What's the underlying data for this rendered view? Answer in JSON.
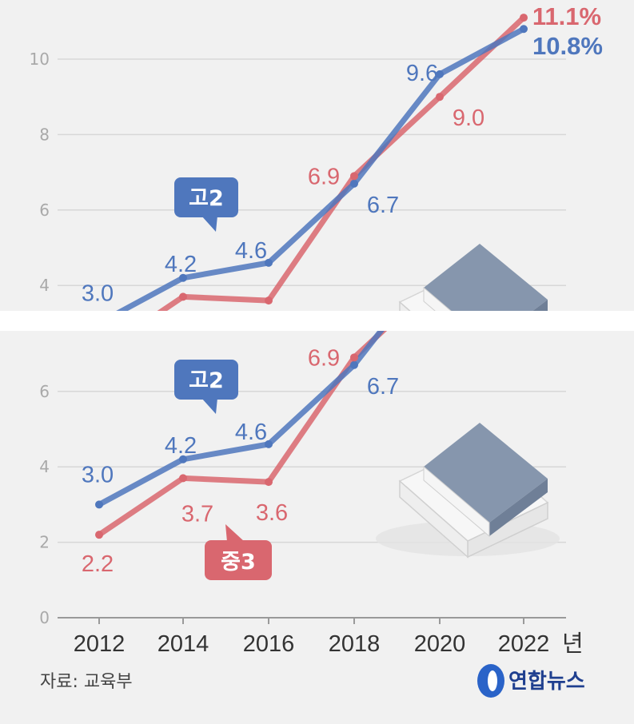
{
  "chart_data": {
    "type": "line",
    "categories": [
      "2012",
      "2014",
      "2016",
      "2018",
      "2020",
      "2022"
    ],
    "x_unit": "년",
    "series": [
      {
        "name": "고2",
        "color": "#4f77bd",
        "values": [
          3.0,
          4.2,
          4.6,
          6.7,
          9.6,
          10.8
        ],
        "labels": [
          "3.0",
          "4.2",
          "4.6",
          "6.7",
          "9.6",
          "10.8%"
        ]
      },
      {
        "name": "중3",
        "color": "#d9676f",
        "values": [
          2.2,
          3.7,
          3.6,
          6.9,
          9.0,
          11.1
        ],
        "labels": [
          "2.2",
          "3.7",
          "3.6",
          "6.9",
          "9.0",
          "11.1%"
        ]
      }
    ],
    "yticks": [
      "0",
      "2",
      "4",
      "6",
      "8",
      "10"
    ],
    "ylim": [
      0,
      11.5
    ],
    "grid": true,
    "legend": "callouts"
  },
  "footer": {
    "source": "자료: 교육부",
    "logo_text": "연합뉴스"
  }
}
